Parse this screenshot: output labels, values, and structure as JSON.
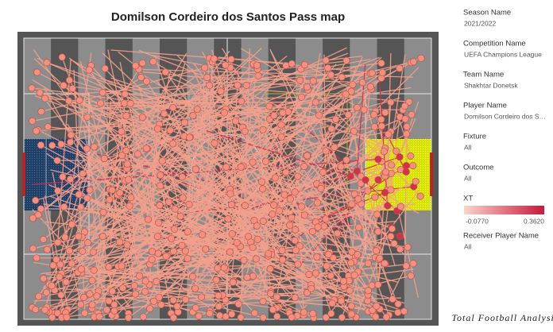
{
  "chart_data": {
    "type": "pass-map",
    "title": "Domilson Cordeiro dos Santos Pass map",
    "color_legend": {
      "title": "XT",
      "min": {
        "value": -0.077,
        "label": "-0.0770"
      },
      "max": {
        "value": 0.362,
        "label": "0.3620"
      },
      "colors": [
        "#fcd3c9",
        "#c8183c"
      ]
    }
  },
  "filters": [
    {
      "name": "Season Name",
      "value": "2021/2022"
    },
    {
      "name": "Competition Name",
      "value": "UEFA Champions League"
    },
    {
      "name": "Team Name",
      "value": "Shakhtar Donetsk"
    },
    {
      "name": "Player Name",
      "value": "Domilson Cordeiro dos S…"
    },
    {
      "name": "Fixture",
      "value": "All"
    },
    {
      "name": "Outcome",
      "value": "All"
    },
    {
      "name": "Receiver Player Name",
      "value": "All"
    }
  ],
  "watermark": "Total Football Analysis"
}
